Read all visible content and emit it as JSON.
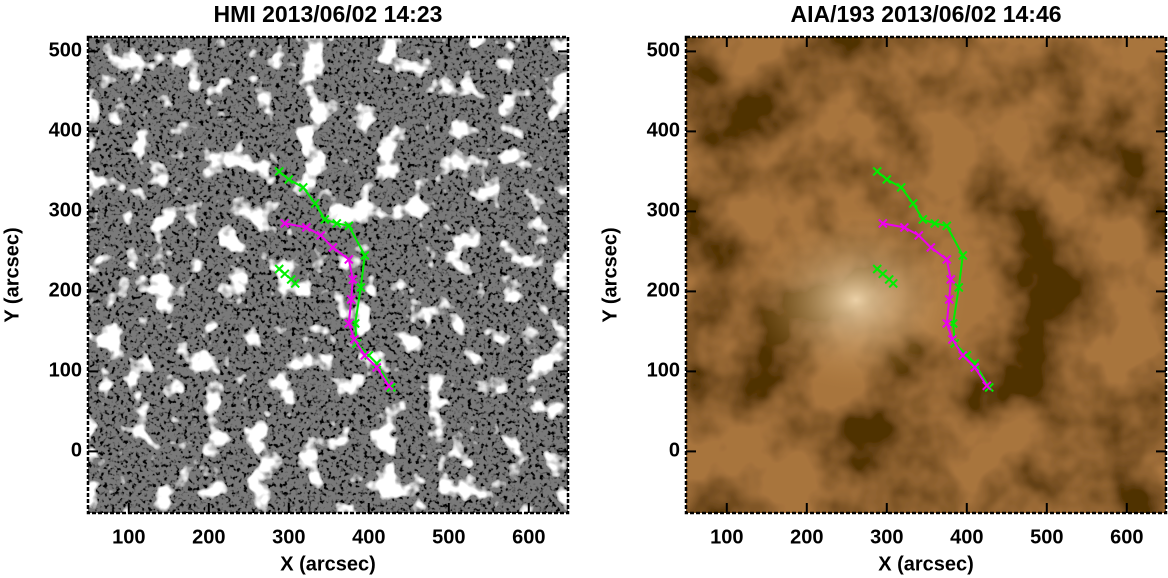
{
  "charts": [
    {
      "type": "line",
      "title": "HMI 2013/06/02 14:23",
      "xlabel": "X (arcsec)",
      "ylabel": "Y (arcsec)",
      "background": "magnetogram",
      "xlim": [
        49,
        649
      ],
      "ylim": [
        -77,
        518
      ],
      "xticks": [
        100,
        200,
        300,
        400,
        500,
        600
      ],
      "yticks": [
        0,
        100,
        200,
        300,
        400,
        500
      ],
      "series": [
        {
          "color": "#00ee00",
          "lines": true,
          "x": [
            288,
            300,
            318,
            333,
            345,
            360,
            375,
            395,
            390,
            383,
            385,
            400,
            410,
            428
          ],
          "values": [
            350,
            340,
            330,
            310,
            290,
            285,
            282,
            245,
            205,
            160,
            135,
            120,
            110,
            80
          ]
        },
        {
          "color": "#ee00ee",
          "lines": true,
          "x": [
            295,
            322,
            340,
            355,
            375,
            380,
            378,
            375,
            382,
            395,
            410,
            425
          ],
          "values": [
            285,
            280,
            270,
            255,
            240,
            215,
            190,
            160,
            140,
            120,
            105,
            82
          ]
        },
        {
          "color": "#00ee00",
          "lines": false,
          "x": [
            288,
            295,
            303,
            308
          ],
          "values": [
            228,
            222,
            215,
            210
          ]
        }
      ]
    },
    {
      "type": "line",
      "title": "AIA/193 2013/06/02 14:46",
      "xlabel": "X (arcsec)",
      "ylabel": "Y (arcsec)",
      "background": "euv",
      "xlim": [
        49,
        649
      ],
      "ylim": [
        -77,
        518
      ],
      "xticks": [
        100,
        200,
        300,
        400,
        500,
        600
      ],
      "yticks": [
        0,
        100,
        200,
        300,
        400,
        500
      ],
      "series": [
        {
          "color": "#00ee00",
          "lines": true,
          "x": [
            288,
            300,
            318,
            333,
            345,
            360,
            375,
            395,
            390,
            383,
            385,
            400,
            410,
            428
          ],
          "values": [
            350,
            340,
            330,
            310,
            290,
            285,
            282,
            245,
            205,
            160,
            135,
            120,
            110,
            80
          ]
        },
        {
          "color": "#ee00ee",
          "lines": true,
          "x": [
            295,
            322,
            340,
            355,
            375,
            380,
            378,
            375,
            382,
            395,
            410,
            425
          ],
          "values": [
            285,
            280,
            270,
            255,
            240,
            215,
            190,
            160,
            140,
            120,
            105,
            82
          ]
        },
        {
          "color": "#00ee00",
          "lines": false,
          "x": [
            288,
            295,
            303,
            308
          ],
          "values": [
            228,
            222,
            215,
            210
          ]
        }
      ]
    }
  ]
}
